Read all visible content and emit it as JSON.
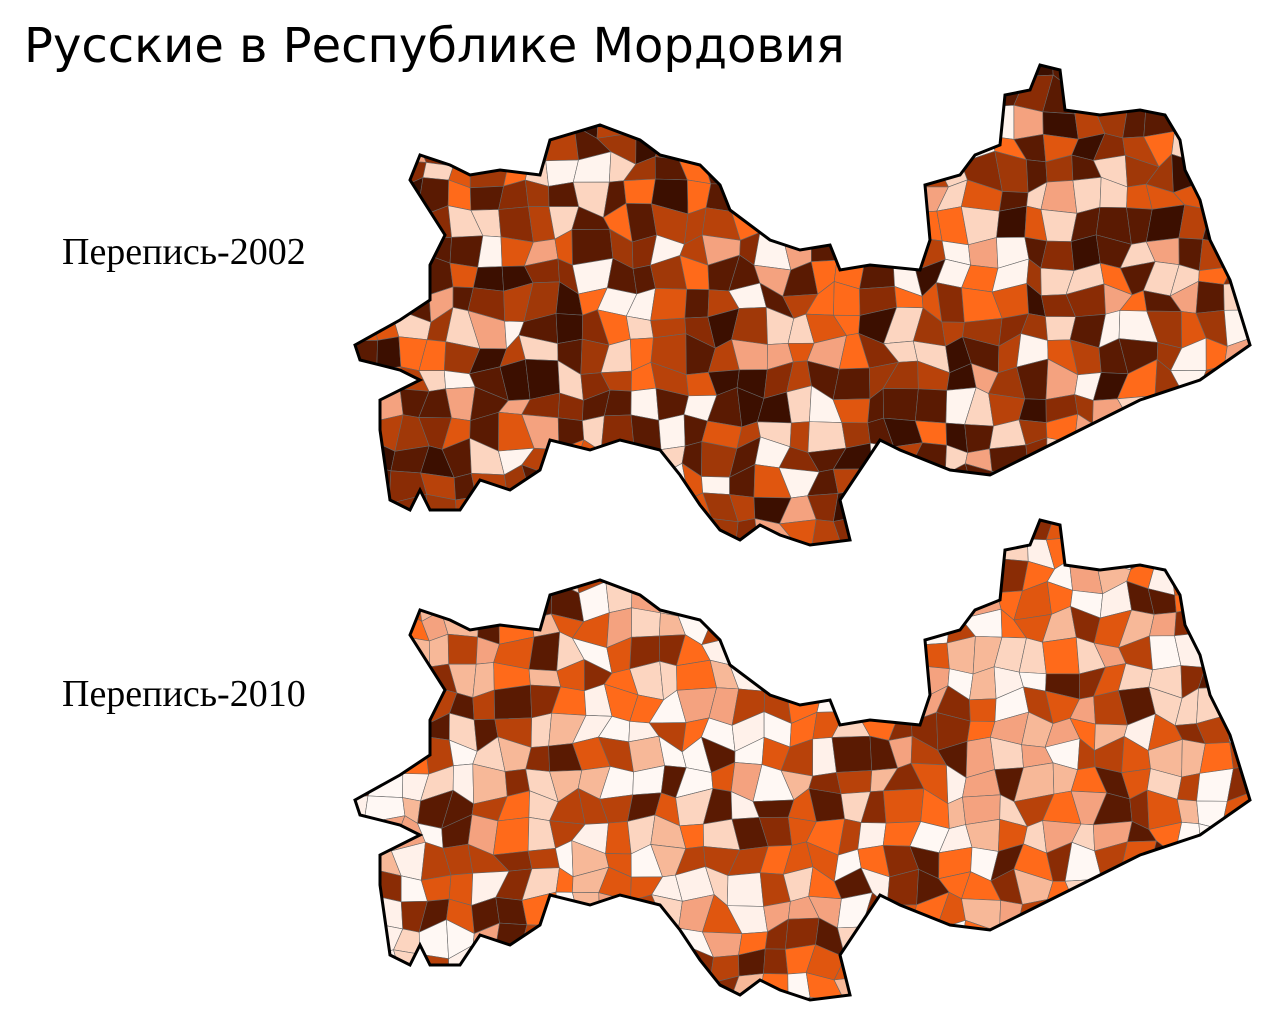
{
  "title": "Русские в Республике Мордовия",
  "maps": [
    {
      "label": "Перепись-2002"
    },
    {
      "label": "Перепись-2010"
    }
  ]
}
